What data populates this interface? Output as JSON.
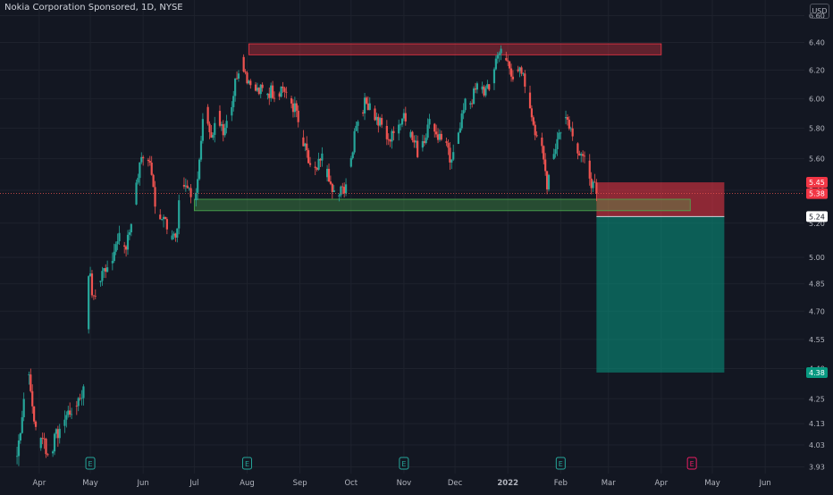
{
  "title": "Nokia Corporation Sponsored, 1D, NYSE",
  "currency": "USD",
  "colors": {
    "background": "#131722",
    "grid": "#1e222d",
    "up": "#26a69a",
    "down": "#ef5350",
    "axis_text": "#b2b5be",
    "resistance_fill": "rgba(242,54,69,0.35)",
    "support_fill": "rgba(76,175,80,0.35)",
    "stop_zone": "rgba(242,54,69,0.55)",
    "target_zone": "rgba(8,153,129,0.55)"
  },
  "chart_data": {
    "type": "candlestick",
    "ylim": [
      3.9,
      6.72
    ],
    "ticks": [
      "6.60",
      "6.40",
      "6.20",
      "6.00",
      "5.80",
      "5.60",
      "5.40",
      "5.20",
      "5.00",
      "4.85",
      "4.70",
      "4.55",
      "4.40",
      "4.25",
      "4.13",
      "4.03",
      "3.93"
    ],
    "tick_values": [
      6.6,
      6.4,
      6.2,
      6.0,
      5.8,
      5.6,
      5.4,
      5.2,
      5.0,
      4.85,
      4.7,
      4.55,
      4.4,
      4.25,
      4.13,
      4.03,
      3.93
    ],
    "x_labels": [
      {
        "label": "Apr",
        "day": 13
      },
      {
        "label": "May",
        "day": 43
      },
      {
        "label": "Jun",
        "day": 74
      },
      {
        "label": "Jul",
        "day": 104
      },
      {
        "label": "Aug",
        "day": 135
      },
      {
        "label": "Sep",
        "day": 166
      },
      {
        "label": "Oct",
        "day": 196
      },
      {
        "label": "Nov",
        "day": 227
      },
      {
        "label": "Dec",
        "day": 257
      },
      {
        "label": "2022",
        "day": 288
      },
      {
        "label": "Feb",
        "day": 319
      },
      {
        "label": "Mar",
        "day": 347
      },
      {
        "label": "Apr",
        "day": 378
      },
      {
        "label": "May",
        "day": 408
      },
      {
        "label": "Jun",
        "day": 439
      }
    ],
    "x_domain": [
      -10,
      462
    ],
    "candles_anchor": [
      [
        0,
        3.98
      ],
      [
        3,
        4.18
      ],
      [
        6,
        4.4
      ],
      [
        9,
        4.22
      ],
      [
        12,
        4.03
      ],
      [
        15,
        4.08
      ],
      [
        18,
        3.98
      ],
      [
        22,
        4.05
      ],
      [
        26,
        4.13
      ],
      [
        30,
        4.18
      ],
      [
        34,
        4.22
      ],
      [
        38,
        4.28
      ],
      [
        40,
        4.3
      ],
      [
        42,
        4.93
      ],
      [
        45,
        4.75
      ],
      [
        48,
        4.85
      ],
      [
        52,
        4.95
      ],
      [
        56,
        5.02
      ],
      [
        60,
        5.1
      ],
      [
        64,
        5.05
      ],
      [
        68,
        5.25
      ],
      [
        72,
        5.6
      ],
      [
        75,
        5.55
      ],
      [
        78,
        5.55
      ],
      [
        82,
        5.28
      ],
      [
        86,
        5.22
      ],
      [
        90,
        5.15
      ],
      [
        93,
        5.12
      ],
      [
        96,
        5.38
      ],
      [
        100,
        5.45
      ],
      [
        102,
        5.32
      ],
      [
        106,
        5.45
      ],
      [
        110,
        5.95
      ],
      [
        114,
        5.78
      ],
      [
        118,
        5.88
      ],
      [
        121,
        5.8
      ],
      [
        125,
        5.9
      ],
      [
        129,
        6.18
      ],
      [
        132,
        6.28
      ],
      [
        135,
        6.15
      ],
      [
        138,
        6.08
      ],
      [
        141,
        6.05
      ],
      [
        144,
        6.05
      ],
      [
        148,
        6.05
      ],
      [
        152,
        6.05
      ],
      [
        156,
        6.08
      ],
      [
        160,
        6.0
      ],
      [
        164,
        5.9
      ],
      [
        167,
        5.72
      ],
      [
        171,
        5.58
      ],
      [
        175,
        5.5
      ],
      [
        179,
        5.6
      ],
      [
        183,
        5.45
      ],
      [
        187,
        5.35
      ],
      [
        191,
        5.4
      ],
      [
        195,
        5.5
      ],
      [
        199,
        5.85
      ],
      [
        203,
        5.95
      ],
      [
        207,
        5.98
      ],
      [
        211,
        5.85
      ],
      [
        215,
        5.8
      ],
      [
        219,
        5.72
      ],
      [
        223,
        5.8
      ],
      [
        227,
        5.9
      ],
      [
        231,
        5.75
      ],
      [
        235,
        5.65
      ],
      [
        239,
        5.75
      ],
      [
        243,
        5.85
      ],
      [
        247,
        5.75
      ],
      [
        251,
        5.7
      ],
      [
        255,
        5.55
      ],
      [
        259,
        5.8
      ],
      [
        263,
        5.95
      ],
      [
        267,
        6.0
      ],
      [
        271,
        6.1
      ],
      [
        275,
        6.05
      ],
      [
        278,
        6.05
      ],
      [
        282,
        6.35
      ],
      [
        285,
        6.3
      ],
      [
        288,
        6.25
      ],
      [
        292,
        6.15
      ],
      [
        296,
        6.18
      ],
      [
        300,
        6.0
      ],
      [
        304,
        5.8
      ],
      [
        308,
        5.65
      ],
      [
        311,
        5.45
      ],
      [
        315,
        5.65
      ],
      [
        319,
        5.8
      ],
      [
        323,
        5.9
      ],
      [
        327,
        5.7
      ],
      [
        331,
        5.65
      ],
      [
        335,
        5.55
      ],
      [
        338,
        5.42
      ],
      [
        340,
        5.38
      ]
    ],
    "resistance_zone": {
      "y": [
        6.31,
        6.39
      ],
      "day": [
        136,
        378
      ]
    },
    "support_zone": {
      "y": [
        5.275,
        5.345
      ],
      "day": [
        104,
        395
      ]
    },
    "position": {
      "entry": 5.24,
      "stop": 5.45,
      "target": 4.38,
      "day": [
        340,
        415
      ]
    },
    "price_labels": [
      {
        "value": 5.45,
        "text": "5.45",
        "color": "#f23645"
      },
      {
        "value": 5.38,
        "text": "5.38",
        "color": "#f23645"
      },
      {
        "value": 5.24,
        "text": "5.24",
        "color": "#131722"
      },
      {
        "value": 4.38,
        "text": "4.38",
        "color": "#089981"
      }
    ],
    "earnings_markers": [
      {
        "day": 43,
        "text": "E",
        "style": "past"
      },
      {
        "day": 135,
        "text": "E",
        "style": "past"
      },
      {
        "day": 227,
        "text": "E",
        "style": "past"
      },
      {
        "day": 319,
        "text": "E",
        "style": "past"
      },
      {
        "day": 396,
        "text": "E",
        "style": "future"
      }
    ]
  }
}
